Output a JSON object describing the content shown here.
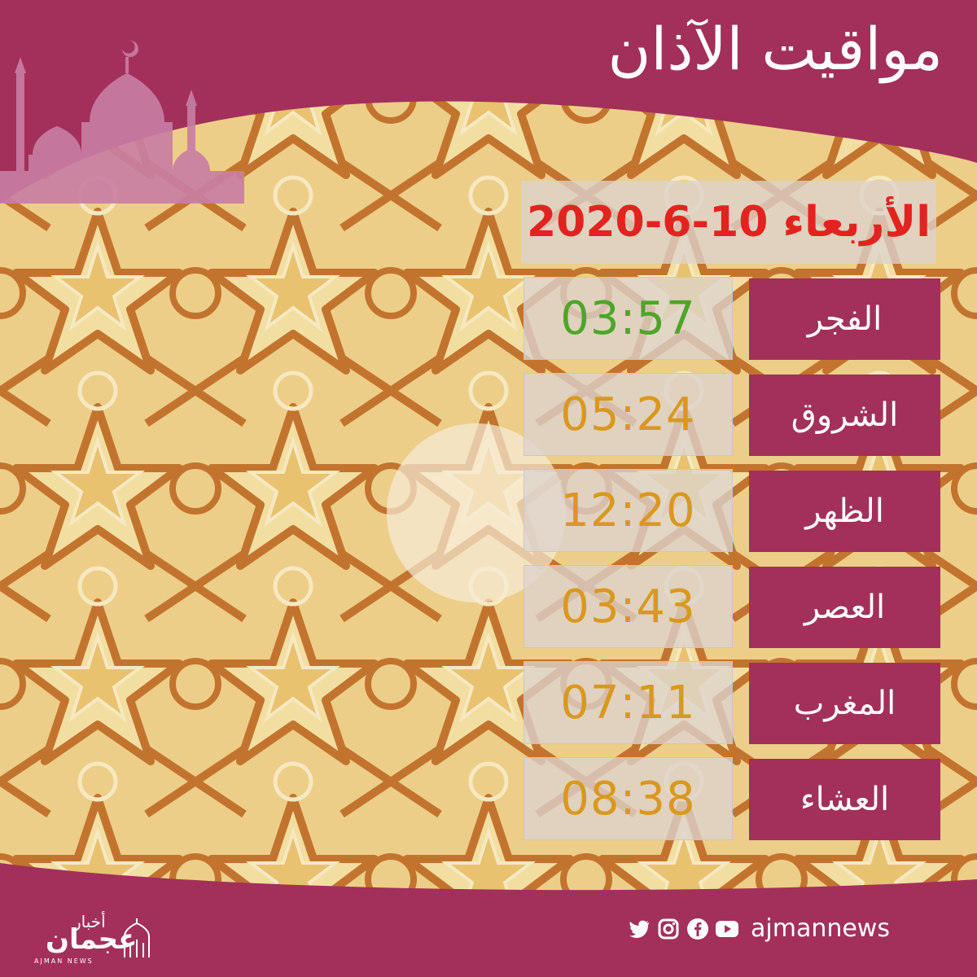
{
  "header": {
    "title": "مواقيت الآذان"
  },
  "date_label": "الأربعاء 10-6-2020",
  "prayers": [
    {
      "name": "الفجر",
      "time": "03:57",
      "highlight": true
    },
    {
      "name": "الشروق",
      "time": "05:24",
      "highlight": false
    },
    {
      "name": "الظهر",
      "time": "12:20",
      "highlight": false
    },
    {
      "name": "العصر",
      "time": "03:43",
      "highlight": false
    },
    {
      "name": "المغرب",
      "time": "07:11",
      "highlight": false
    },
    {
      "name": "العشاء",
      "time": "08:38",
      "highlight": false
    }
  ],
  "footer": {
    "brand_top": "أخبار",
    "brand_main": "عجمان",
    "brand_sub": "AJMAN NEWS",
    "handle": "ajmannews",
    "social_icons": [
      "twitter-icon",
      "instagram-icon",
      "facebook-icon",
      "youtube-icon"
    ]
  },
  "colors": {
    "background": "#a2305a",
    "date": "#e3231f",
    "fajr_time": "#4ea52a",
    "time": "#d9981f",
    "pattern_base": "#edce88",
    "pattern_lines": "#c2742e"
  }
}
